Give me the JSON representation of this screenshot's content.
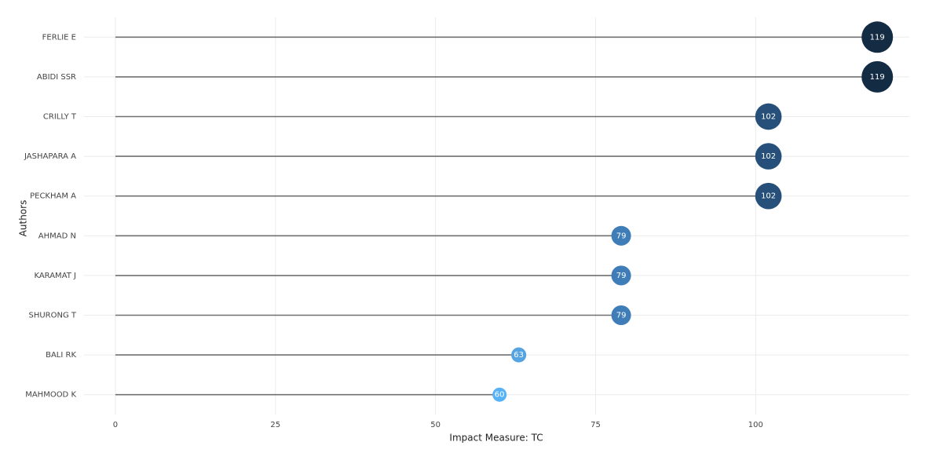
{
  "chart_data": {
    "type": "lollipop",
    "x_label": "Impact Measure: TC",
    "y_label": "Authors",
    "categories": [
      "FERLIE E",
      "ABIDI SSR",
      "CRILLY T",
      "JASHAPARA A",
      "PECKHAM A",
      "AHMAD N",
      "KARAMAT J",
      "SHURONG T",
      "BALI RK",
      "MAHMOOD K"
    ],
    "values": [
      119,
      119,
      102,
      102,
      102,
      79,
      79,
      79,
      63,
      60
    ],
    "colors": [
      "#132b43",
      "#132b43",
      "#26507a",
      "#26507a",
      "#26507a",
      "#3e7db8",
      "#3e7db8",
      "#3e7db8",
      "#55a3e0",
      "#56b1f7"
    ],
    "stem_color": "#707070",
    "xlim": [
      -4.9,
      124
    ],
    "xticks": [
      0,
      25,
      50,
      75,
      100
    ],
    "grid": true
  }
}
